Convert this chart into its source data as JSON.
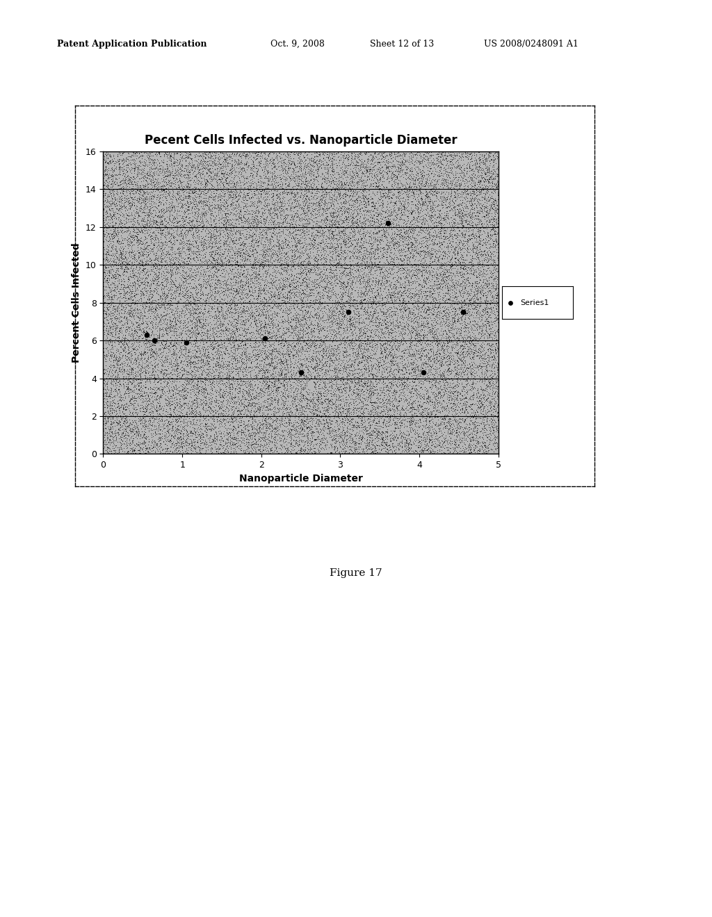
{
  "title": "Pecent Cells Infected vs. Nanoparticle Diameter",
  "xlabel": "Nanoparticle Diameter",
  "ylabel": "Percent Cells Infected",
  "xlim": [
    0,
    5
  ],
  "ylim": [
    0,
    16
  ],
  "xticks": [
    0,
    1,
    2,
    3,
    4,
    5
  ],
  "yticks": [
    0,
    2,
    4,
    6,
    8,
    10,
    12,
    14,
    16
  ],
  "series1_x": [
    0.55,
    0.65,
    1.05,
    2.05,
    2.5,
    3.1,
    3.6,
    4.05,
    4.55
  ],
  "series1_y": [
    6.3,
    6.0,
    5.9,
    6.1,
    4.3,
    7.5,
    12.2,
    4.3,
    7.5
  ],
  "legend_label": "Series1",
  "marker_color": "black",
  "background_color": "#ffffff",
  "plot_bg_color": "#b8b8b8",
  "grid_color": "#000000",
  "title_fontsize": 12,
  "axis_label_fontsize": 10,
  "tick_fontsize": 9,
  "header_line1": "Patent Application Publication",
  "header_line2": "Oct. 9, 2008",
  "header_line3": "Sheet 12 of 13",
  "header_line4": "US 2008/0248091 A1",
  "figure_label": "Figure 17",
  "noise_seed": 42,
  "n_noise": 40000,
  "noise_alpha": 0.6,
  "noise_size": 0.5
}
